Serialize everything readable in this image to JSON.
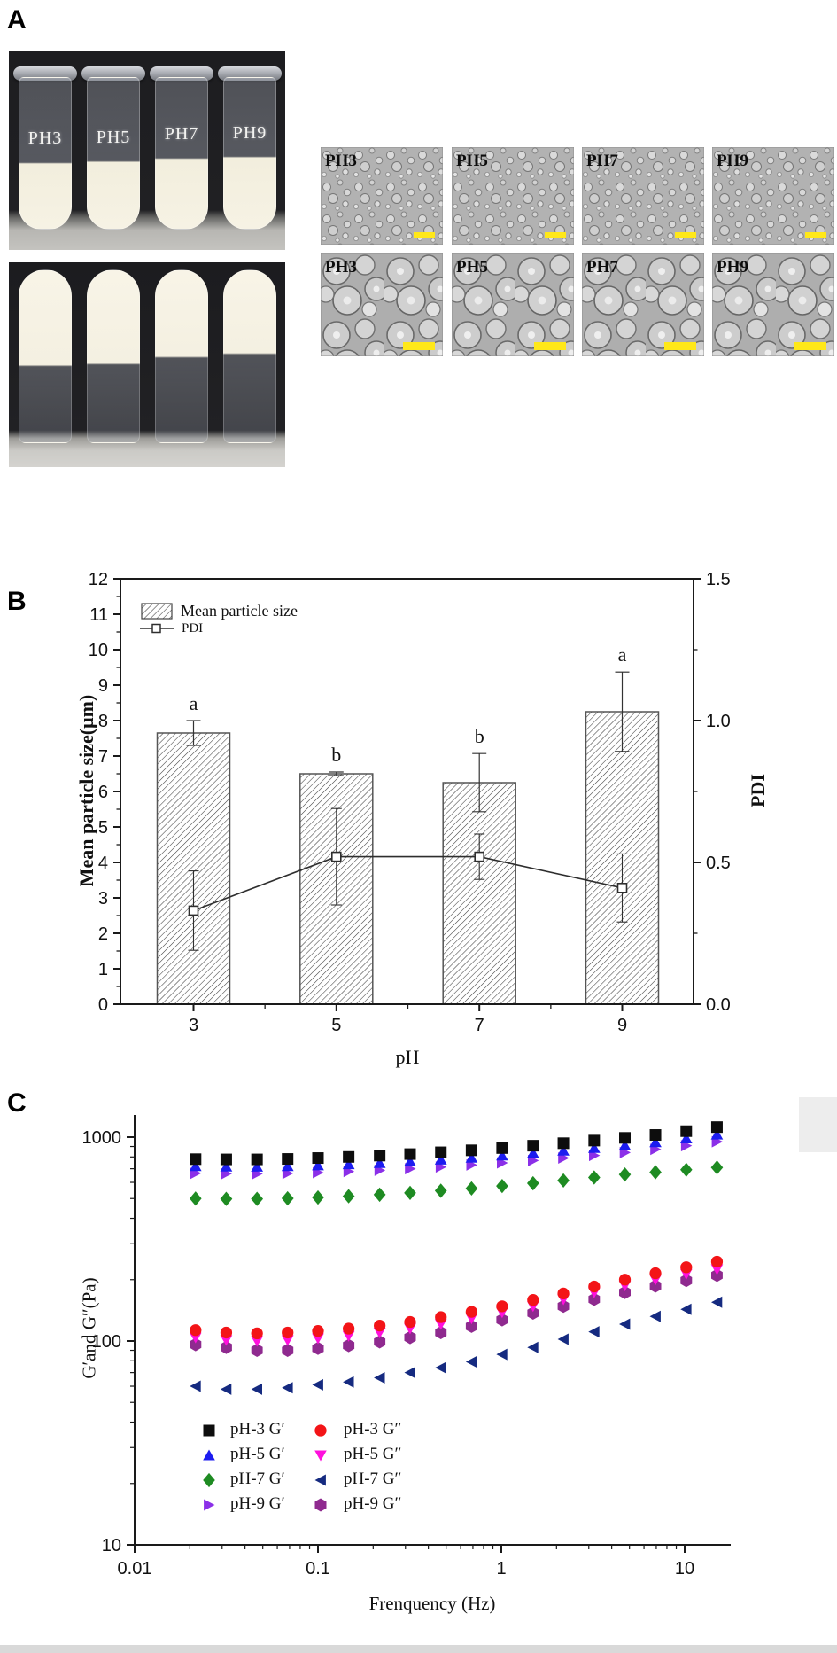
{
  "figure": {
    "panelA": {
      "label": "A",
      "tube_labels": [
        "PH3",
        "PH5",
        "PH7",
        "PH9"
      ],
      "micrographs": [
        {
          "label": "PH3",
          "row": 1
        },
        {
          "label": "PH5",
          "row": 1
        },
        {
          "label": "PH7",
          "row": 1
        },
        {
          "label": "PH9",
          "row": 1
        },
        {
          "label": "PH3",
          "row": 2
        },
        {
          "label": "PH5",
          "row": 2
        },
        {
          "label": "PH7",
          "row": 2
        },
        {
          "label": "PH9",
          "row": 2
        }
      ],
      "scale_bar_color": "#ffe819"
    },
    "panelB": {
      "label": "B"
    },
    "panelC": {
      "label": "C"
    }
  },
  "chart_data": [
    {
      "id": "particle-size-pdi",
      "type": "bar",
      "xlabel": "pH",
      "ylabel_left": "Mean particle size(μm)",
      "ylabel_right": "PDI",
      "categories": [
        "3",
        "5",
        "7",
        "9"
      ],
      "ylim_left": [
        0,
        12
      ],
      "yticks_left": [
        0,
        1,
        2,
        3,
        4,
        5,
        6,
        7,
        8,
        9,
        10,
        11,
        12
      ],
      "ylim_right": [
        0,
        1.5
      ],
      "yticks_right": [
        "0.0",
        "0.5",
        "1.0",
        "1.5"
      ],
      "grid": false,
      "legend_position": "top-left-inside",
      "bars": {
        "name": "Mean particle size",
        "values": [
          7.65,
          6.5,
          6.25,
          8.25
        ],
        "errors": [
          0.35,
          0.05,
          0.82,
          1.12
        ],
        "sig_letters": [
          "a",
          "b",
          "b",
          "a"
        ],
        "hatch_color": "#3f3f3f",
        "border_color": "#555555"
      },
      "line": {
        "name": "PDI",
        "values": [
          0.33,
          0.52,
          0.52,
          0.41
        ],
        "errors": [
          0.14,
          0.17,
          0.08,
          0.12
        ],
        "color": "#2e2e2e",
        "marker": "open-square"
      }
    },
    {
      "id": "rheology-frequency-sweep",
      "type": "scatter",
      "xlabel": "Frenquency (Hz)",
      "ylabel": "G′and G″(Pa)",
      "xscale": "log",
      "yscale": "log",
      "xlim": [
        0.01,
        18
      ],
      "ylim": [
        10,
        1280
      ],
      "xticks": [
        "0.01",
        "0.1",
        "1",
        "10"
      ],
      "yticks": [
        "10",
        "100",
        "1000"
      ],
      "grid": false,
      "legend_position": "bottom-left-inside",
      "x": [
        0.0215,
        0.0316,
        0.0465,
        0.0683,
        0.1,
        0.147,
        0.217,
        0.318,
        0.468,
        0.688,
        1.01,
        1.49,
        2.18,
        3.21,
        4.72,
        6.93,
        10.2,
        15.0
      ],
      "series": [
        {
          "name": "pH-3 G′",
          "marker": "square",
          "color": "#0d0d0d",
          "values": [
            780,
            778,
            778,
            782,
            790,
            800,
            812,
            826,
            843,
            862,
            884,
            908,
            934,
            962,
            992,
            1025,
            1070,
            1120
          ]
        },
        {
          "name": "pH-5 G′",
          "marker": "triangle-up",
          "color": "#1c1cf0",
          "values": [
            720,
            717,
            716,
            720,
            727,
            736,
            747,
            760,
            776,
            793,
            813,
            835,
            858,
            884,
            912,
            945,
            985,
            1030
          ]
        },
        {
          "name": "pH-7 G′",
          "marker": "diamond",
          "color": "#1e8b22",
          "values": [
            500,
            498,
            498,
            501,
            506,
            513,
            522,
            533,
            546,
            560,
            576,
            594,
            613,
            634,
            656,
            673,
            692,
            710
          ]
        },
        {
          "name": "pH-9 G′",
          "marker": "triangle-right",
          "color": "#8b2fe8",
          "values": [
            665,
            662,
            661,
            664,
            670,
            678,
            688,
            700,
            714,
            730,
            748,
            768,
            790,
            814,
            840,
            872,
            908,
            950
          ]
        },
        {
          "name": "pH-3 G″",
          "marker": "circle",
          "color": "#f31417",
          "values": [
            113,
            110,
            109,
            110,
            112,
            115,
            119,
            124,
            131,
            139,
            148,
            159,
            171,
            185,
            200,
            215,
            230,
            245
          ]
        },
        {
          "name": "pH-5 G″",
          "marker": "triangle-down",
          "color": "#ff10dd",
          "values": [
            104,
            101,
            100,
            101,
            103,
            106,
            110,
            115,
            121,
            129,
            138,
            148,
            160,
            173,
            187,
            200,
            213,
            225
          ]
        },
        {
          "name": "pH-7 G″",
          "marker": "triangle-left",
          "color": "#152a80",
          "values": [
            60,
            58,
            58,
            59,
            61,
            63,
            66,
            70,
            74,
            79,
            86,
            93,
            102,
            111,
            121,
            132,
            143,
            155
          ]
        },
        {
          "name": "pH-9 G″",
          "marker": "hexagon",
          "color": "#8f2a8f",
          "values": [
            96,
            93,
            90,
            90,
            92,
            95,
            99,
            104,
            110,
            118,
            127,
            137,
            148,
            160,
            173,
            186,
            198,
            210
          ]
        }
      ]
    }
  ]
}
